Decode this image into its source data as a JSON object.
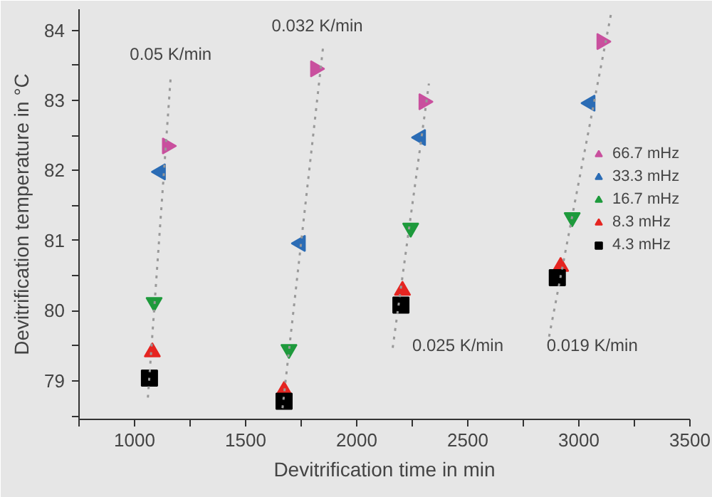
{
  "chart_data": {
    "type": "scatter",
    "xlabel": "Devitrification time in min",
    "ylabel": "Devitrification temperature in °C",
    "xlim": [
      750,
      3500
    ],
    "ylim": [
      78.45,
      84.3
    ],
    "xticks": [
      {
        "value": 750,
        "label": null
      },
      1000,
      {
        "value": 1250,
        "label": null
      },
      1500,
      {
        "value": 1750,
        "label": null
      },
      2000,
      {
        "value": 2250,
        "label": null
      },
      2500,
      {
        "value": 2750,
        "label": null
      },
      3000,
      {
        "value": 3250,
        "label": null
      },
      3500
    ],
    "yticks": [
      {
        "value": 78.5,
        "label": null
      },
      79,
      {
        "value": 79.5,
        "label": null
      },
      80,
      {
        "value": 80.5,
        "label": null
      },
      81,
      {
        "value": 81.5,
        "label": null
      },
      82,
      {
        "value": 82.5,
        "label": null
      },
      83,
      {
        "value": 83.5,
        "label": null
      },
      84
    ],
    "legend": "right",
    "series": [
      {
        "name": "66.7 mHz",
        "color": "#c9509e",
        "marker": "triangle",
        "x": [
          1147,
          1814,
          2302,
          3103
        ],
        "values": [
          82.35,
          83.45,
          82.98,
          83.84
        ]
      },
      {
        "name": "33.3 mHz",
        "color": "#2b6cb5",
        "marker": "triangle",
        "x": [
          1117,
          1747,
          2288,
          3051
        ],
        "values": [
          81.98,
          80.96,
          82.47,
          82.96
        ]
      },
      {
        "name": "16.7 mHz",
        "color": "#1e9a3c",
        "marker": "triangle",
        "x": [
          1088,
          1695,
          2243,
          2970
        ],
        "values": [
          80.12,
          79.45,
          81.18,
          81.33
        ]
      },
      {
        "name": "8.3 mHz",
        "color": "#e52521",
        "marker": "triangle",
        "x": [
          1080,
          1673,
          2206,
          2918
        ],
        "values": [
          79.41,
          78.86,
          80.29,
          80.63
        ]
      },
      {
        "name": "4.3 mHz",
        "color": "#000000",
        "marker": "square",
        "x": [
          1067,
          1673,
          2199,
          2903
        ],
        "values": [
          79.04,
          78.71,
          80.08,
          80.47
        ]
      },
      {
        "type": "line",
        "color": "#999999",
        "line_style": "dotted",
        "x": [
          1060,
          1163
        ],
        "values": [
          78.76,
          83.35
        ]
      },
      {
        "type": "line",
        "color": "#999999",
        "line_style": "dotted",
        "x": [
          1666,
          1850
        ],
        "values": [
          78.61,
          83.8
        ]
      },
      {
        "type": "line",
        "color": "#999999",
        "line_style": "dotted",
        "x": [
          2162,
          2325
        ],
        "values": [
          79.47,
          83.24
        ]
      },
      {
        "type": "line",
        "color": "#999999",
        "line_style": "dotted",
        "x": [
          2866,
          3147
        ],
        "values": [
          79.63,
          84.27
        ]
      }
    ],
    "annotations": [
      "0.05 K/min",
      "0.032 K/min",
      "0.025 K/min",
      "0.019 K/min"
    ]
  }
}
